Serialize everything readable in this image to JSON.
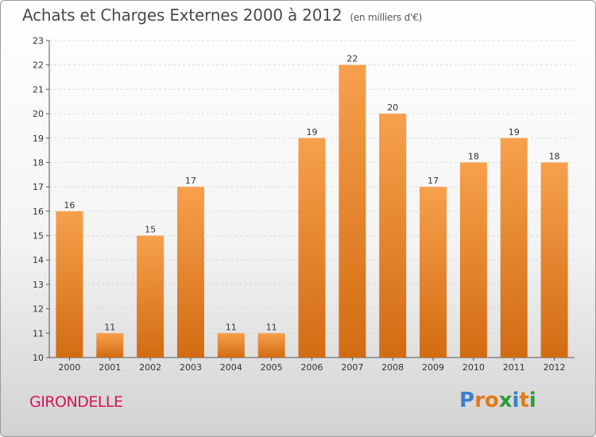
{
  "header": {
    "title": "Achats et Charges Externes 2000 à 2012",
    "subtitle": "(en milliers d'€)"
  },
  "footer": {
    "commune": "GIRONDELLE",
    "logo_letters": [
      {
        "char": "P",
        "color": "#3a7fc8"
      },
      {
        "char": "r",
        "color": "#e07b1a"
      },
      {
        "char": "o",
        "color": "#e07b1a"
      },
      {
        "char": "x",
        "color": "#2e9a3a"
      },
      {
        "char": "i",
        "color": "#3a7fc8"
      },
      {
        "char": "t",
        "color": "#e07b1a"
      },
      {
        "char": "i",
        "color": "#2e9a3a"
      }
    ]
  },
  "chart_data": {
    "type": "bar",
    "categories": [
      "2000",
      "2001",
      "2002",
      "2003",
      "2004",
      "2005",
      "2006",
      "2007",
      "2008",
      "2009",
      "2010",
      "2011",
      "2012"
    ],
    "values": [
      16,
      11,
      15,
      17,
      11,
      11,
      19,
      22,
      20,
      17,
      18,
      19,
      18
    ],
    "ylim": [
      10,
      23
    ],
    "yticks": [
      10,
      11,
      12,
      13,
      14,
      15,
      16,
      17,
      18,
      19,
      20,
      21,
      22,
      23
    ],
    "grid": true,
    "bar_color_top": "#f7a04c",
    "bar_color_bottom": "#d26c12"
  }
}
